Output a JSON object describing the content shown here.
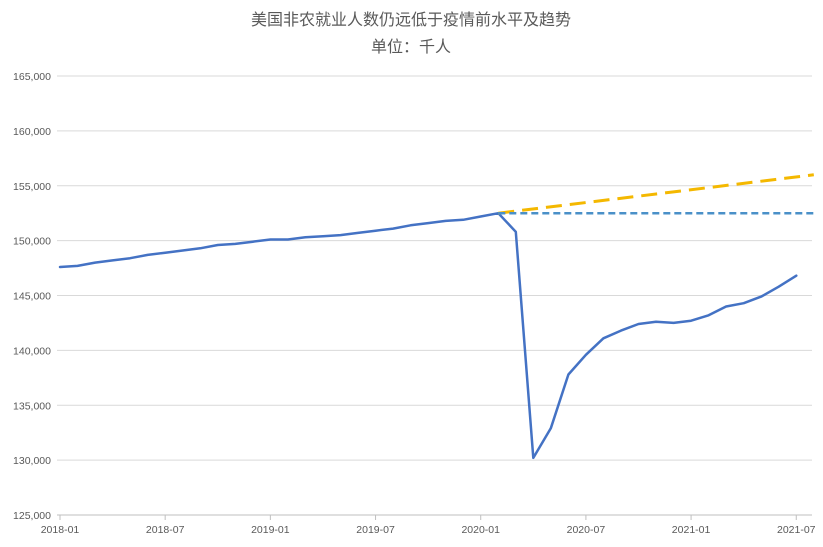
{
  "chart_data": {
    "type": "line",
    "title": "美国非农就业人数仍远低于疫情前水平及趋势",
    "subtitle": "单位：千人",
    "xlabel": "",
    "ylabel": "",
    "ylim": [
      125000,
      165000
    ],
    "yticks": [
      125000,
      130000,
      135000,
      140000,
      145000,
      150000,
      155000,
      160000,
      165000
    ],
    "ytick_labels": [
      "125,000",
      "130,000",
      "135,000",
      "140,000",
      "145,000",
      "150,000",
      "155,000",
      "160,000",
      "165,000"
    ],
    "xlim": [
      "2018-01",
      "2021-08"
    ],
    "xticks": [
      "2018-01",
      "2018-07",
      "2019-01",
      "2019-07",
      "2020-01",
      "2020-07",
      "2021-01",
      "2021-07"
    ],
    "grid": true,
    "legend": "none",
    "series": [
      {
        "color": "#4472c4",
        "style": "solid",
        "x": [
          "2018-01",
          "2018-02",
          "2018-03",
          "2018-04",
          "2018-05",
          "2018-06",
          "2018-07",
          "2018-08",
          "2018-09",
          "2018-10",
          "2018-11",
          "2018-12",
          "2019-01",
          "2019-02",
          "2019-03",
          "2019-04",
          "2019-05",
          "2019-06",
          "2019-07",
          "2019-08",
          "2019-09",
          "2019-10",
          "2019-11",
          "2019-12",
          "2020-01",
          "2020-02",
          "2020-03",
          "2020-04",
          "2020-05",
          "2020-06",
          "2020-07",
          "2020-08",
          "2020-09",
          "2020-10",
          "2020-11",
          "2020-12",
          "2021-01",
          "2021-02",
          "2021-03",
          "2021-04",
          "2021-05",
          "2021-06",
          "2021-07"
        ],
        "values": [
          147600,
          147700,
          148000,
          148200,
          148400,
          148700,
          148900,
          149100,
          149300,
          149600,
          149700,
          149900,
          150100,
          150100,
          150300,
          150400,
          150500,
          150700,
          150900,
          151100,
          151400,
          151600,
          151800,
          151900,
          152200,
          152500,
          150800,
          130200,
          132900,
          137800,
          139600,
          141100,
          141800,
          142400,
          142600,
          142500,
          142700,
          143200,
          144000,
          144300,
          144900,
          145800,
          146800
        ]
      },
      {
        "color": "#f4b800",
        "style": "dashed",
        "x": [
          "2020-02",
          "2021-08"
        ],
        "values": [
          152500,
          156000
        ]
      },
      {
        "color": "#4a90c8",
        "style": "dashed",
        "x": [
          "2020-02",
          "2021-08"
        ],
        "values": [
          152500,
          152500
        ]
      }
    ]
  }
}
